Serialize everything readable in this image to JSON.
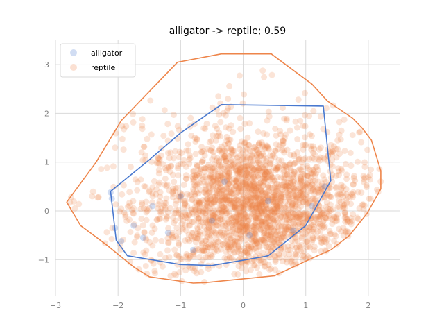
{
  "chart_data": {
    "type": "scatter",
    "title": "alligator -> reptile; 0.59",
    "xlabel": "",
    "ylabel": "",
    "xlim": [
      -3.0,
      2.5
    ],
    "ylim": [
      -1.75,
      3.5
    ],
    "xticks": [
      -3,
      -2,
      -1,
      0,
      1,
      2
    ],
    "yticks": [
      -1,
      0,
      1,
      2,
      3
    ],
    "grid": true,
    "legend_position": "top-left",
    "series": [
      {
        "name": "alligator",
        "color": "#4878cf",
        "points": [
          [
            -2.12,
            0.38
          ],
          [
            -2.1,
            0.25
          ],
          [
            -2.05,
            -0.35
          ],
          [
            -1.95,
            -0.62
          ],
          [
            -1.75,
            -0.3
          ],
          [
            -1.6,
            -0.55
          ],
          [
            -1.45,
            0.1
          ],
          [
            -1.2,
            -0.45
          ],
          [
            -1.0,
            0.3
          ],
          [
            -0.8,
            -0.8
          ],
          [
            -0.5,
            -0.2
          ],
          [
            -0.3,
            0.6
          ],
          [
            0.1,
            -0.5
          ],
          [
            0.4,
            0.2
          ],
          [
            0.8,
            -0.4
          ],
          [
            1.1,
            0.1
          ],
          [
            1.3,
            0.5
          ]
        ],
        "hull": [
          [
            -2.12,
            0.4
          ],
          [
            -2.03,
            -0.6
          ],
          [
            -1.85,
            -0.92
          ],
          [
            -1.0,
            -1.1
          ],
          [
            -0.5,
            -1.12
          ],
          [
            0.05,
            -1.0
          ],
          [
            0.4,
            -0.92
          ],
          [
            1.0,
            -0.3
          ],
          [
            1.4,
            0.62
          ],
          [
            1.28,
            2.15
          ],
          [
            -0.35,
            2.18
          ],
          [
            -1.0,
            1.6
          ],
          [
            -1.5,
            1.05
          ]
        ]
      },
      {
        "name": "reptile",
        "color": "#ee854a",
        "hull": [
          [
            -2.82,
            0.18
          ],
          [
            -2.6,
            -0.3
          ],
          [
            -2.2,
            -0.68
          ],
          [
            -1.75,
            -1.15
          ],
          [
            -1.5,
            -1.35
          ],
          [
            -0.8,
            -1.48
          ],
          [
            -0.6,
            -1.47
          ],
          [
            0.5,
            -1.33
          ],
          [
            1.05,
            -1.0
          ],
          [
            1.4,
            -0.8
          ],
          [
            1.7,
            -0.5
          ],
          [
            1.98,
            -0.05
          ],
          [
            2.2,
            0.45
          ],
          [
            2.2,
            0.82
          ],
          [
            2.05,
            1.45
          ],
          [
            1.9,
            1.7
          ],
          [
            1.75,
            1.9
          ],
          [
            1.35,
            2.25
          ],
          [
            1.1,
            2.6
          ],
          [
            0.45,
            3.22
          ],
          [
            -0.35,
            3.22
          ],
          [
            -1.05,
            3.05
          ],
          [
            -1.95,
            1.85
          ],
          [
            -2.35,
            1.0
          ]
        ]
      }
    ]
  }
}
